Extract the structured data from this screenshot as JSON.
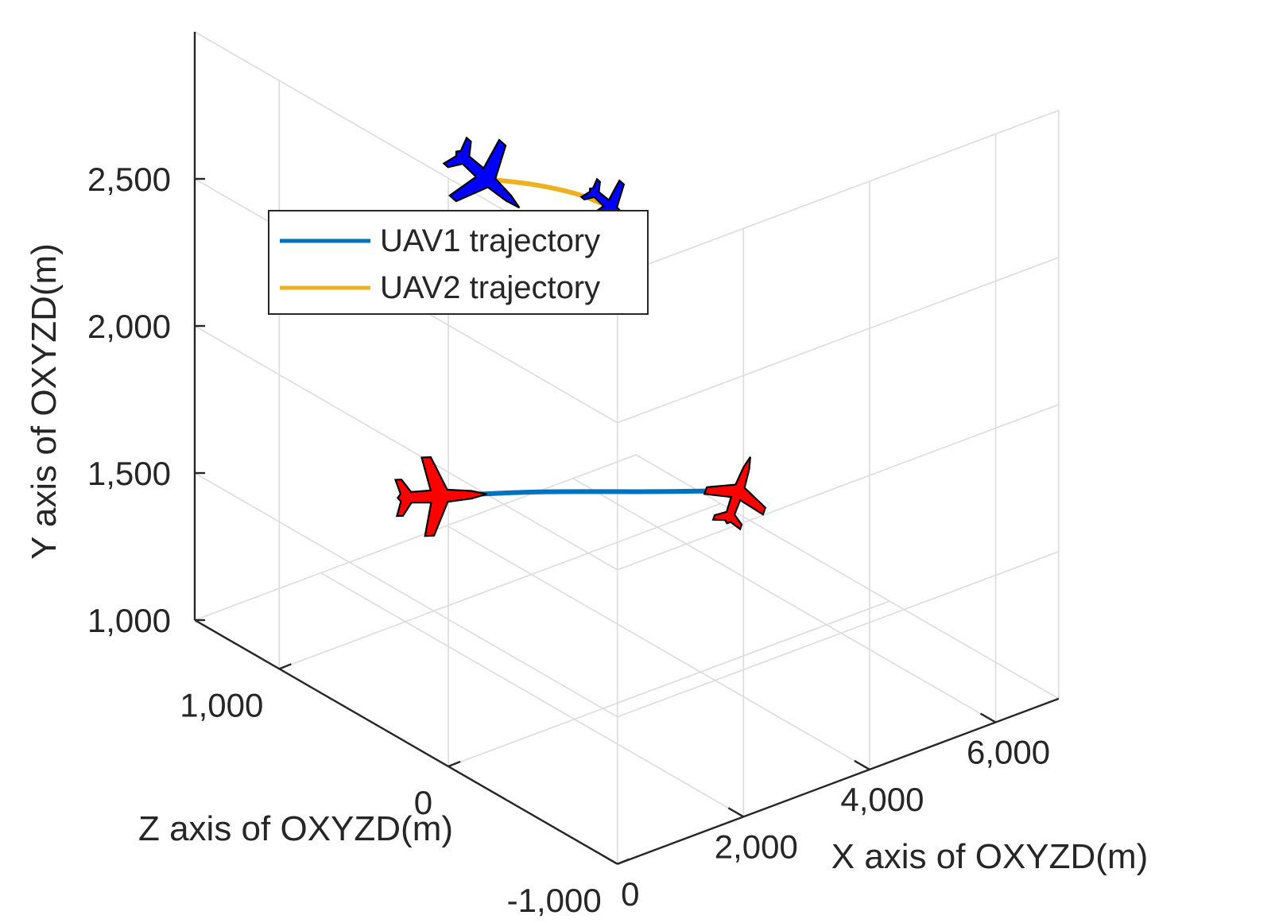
{
  "chart_data": {
    "type": "line3d",
    "title": "",
    "xlabel": "X axis of OXYZD(m)",
    "ylabel": "Y axis of OXYZD(m)",
    "zlabel": "Z axis of OXYZD(m)",
    "x_ticks": [
      0,
      2000,
      4000,
      6000
    ],
    "x_tick_labels": [
      "0",
      "2,000",
      "4,000",
      "6,000"
    ],
    "y_ticks": [
      1000,
      1500,
      2000,
      2500
    ],
    "y_tick_labels": [
      "1,000",
      "1,500",
      "2,000",
      "2,500"
    ],
    "z_ticks": [
      -1000,
      0,
      1000
    ],
    "z_tick_labels": [
      "-1,000",
      "0",
      "1,000"
    ],
    "xlim": [
      0,
      7000
    ],
    "ylim": [
      1000,
      3000
    ],
    "zlim": [
      -1000,
      1500
    ],
    "grid": true,
    "legend_position": "top-left",
    "series": [
      {
        "name": "UAV1 trajectory",
        "color": "#0072BD",
        "marker_color": "#FF0000",
        "points": [
          {
            "x": 1500,
            "y": 1600,
            "z": 600
          },
          {
            "x": 2500,
            "y": 1600,
            "z": 400
          },
          {
            "x": 3500,
            "y": 1620,
            "z": 100
          },
          {
            "x": 4200,
            "y": 1650,
            "z": -150
          }
        ]
      },
      {
        "name": "UAV2 trajectory",
        "color": "#EDB120",
        "marker_color": "#0000FF",
        "points": [
          {
            "x": 3300,
            "y": 2400,
            "z": 1000
          },
          {
            "x": 3900,
            "y": 2350,
            "z": 950
          },
          {
            "x": 4500,
            "y": 2280,
            "z": 920
          },
          {
            "x": 5000,
            "y": 2200,
            "z": 900
          }
        ]
      }
    ]
  }
}
